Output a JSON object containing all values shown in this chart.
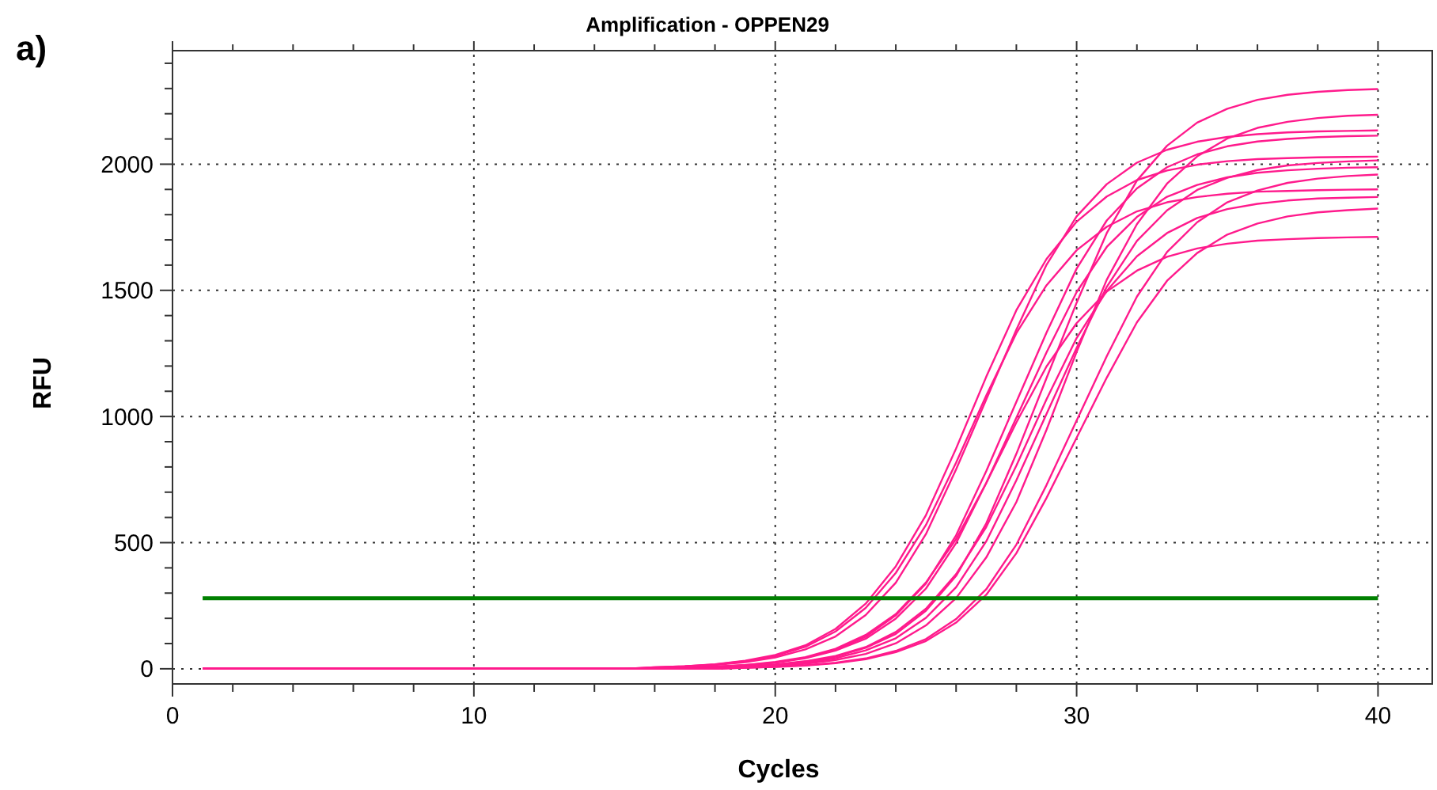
{
  "chart_data": {
    "type": "line",
    "title": "Amplification - OPPEN29",
    "xlabel": "Cycles",
    "ylabel": "RFU",
    "annotations": [
      "a)"
    ],
    "x": [
      1,
      2,
      3,
      4,
      5,
      6,
      7,
      8,
      9,
      10,
      11,
      12,
      13,
      14,
      15,
      16,
      17,
      18,
      19,
      20,
      21,
      22,
      23,
      24,
      25,
      26,
      27,
      28,
      29,
      30,
      31,
      32,
      33,
      34,
      35,
      36,
      37,
      38,
      39,
      40
    ],
    "xlim": [
      0,
      41.8
    ],
    "ylim": [
      -60,
      2450
    ],
    "xticks": [
      0,
      {
        "value": 2,
        "label": null
      },
      {
        "value": 4,
        "label": null
      },
      {
        "value": 6,
        "label": null
      },
      {
        "value": 8,
        "label": null
      },
      10,
      {
        "value": 12,
        "label": null
      },
      {
        "value": 14,
        "label": null
      },
      {
        "value": 16,
        "label": null
      },
      {
        "value": 18,
        "label": null
      },
      20,
      {
        "value": 22,
        "label": null
      },
      {
        "value": 24,
        "label": null
      },
      {
        "value": 26,
        "label": null
      },
      {
        "value": 28,
        "label": null
      },
      30,
      {
        "value": 32,
        "label": null
      },
      {
        "value": 34,
        "label": null
      },
      {
        "value": 36,
        "label": null
      },
      {
        "value": 38,
        "label": null
      },
      40
    ],
    "yticks": [
      0,
      {
        "value": 100,
        "label": null
      },
      {
        "value": 200,
        "label": null
      },
      {
        "value": 300,
        "label": null
      },
      {
        "value": 400,
        "label": null
      },
      500,
      {
        "value": 600,
        "label": null
      },
      {
        "value": 700,
        "label": null
      },
      {
        "value": 800,
        "label": null
      },
      {
        "value": 900,
        "label": null
      },
      1000,
      {
        "value": 1100,
        "label": null
      },
      {
        "value": 1200,
        "label": null
      },
      {
        "value": 1300,
        "label": null
      },
      {
        "value": 1400,
        "label": null
      },
      1500,
      {
        "value": 1600,
        "label": null
      },
      {
        "value": 1700,
        "label": null
      },
      {
        "value": 1800,
        "label": null
      },
      {
        "value": 1900,
        "label": null
      },
      2000,
      {
        "value": 2100,
        "label": null
      },
      {
        "value": 2200,
        "label": null
      },
      {
        "value": 2300,
        "label": null
      },
      {
        "value": 2400,
        "label": null
      }
    ],
    "grid": true,
    "marker": "none",
    "line_style": "solid",
    "ref_lines": [
      {
        "axis": "y",
        "value": 280,
        "color": "#008000",
        "line_style": "solid"
      }
    ],
    "series": [
      {
        "color": "#ff1a8c",
        "values": [
          0,
          0,
          0,
          0,
          0,
          0,
          0,
          0,
          0,
          0,
          0,
          0,
          0,
          0,
          0,
          6,
          10,
          18,
          32,
          55,
          93,
          158,
          258,
          406,
          609,
          873,
          1157,
          1421,
          1624,
          1772,
          1872,
          1937,
          1975,
          1998,
          2012,
          2020,
          2024,
          2027,
          2029,
          2030
        ]
      },
      {
        "color": "#ff1a8c",
        "values": [
          0,
          0,
          0,
          0,
          0,
          0,
          0,
          0,
          0,
          0,
          0,
          0,
          0,
          0,
          0,
          6,
          10,
          17,
          30,
          51,
          87,
          148,
          241,
          380,
          570,
          817,
          1083,
          1330,
          1520,
          1659,
          1752,
          1813,
          1849,
          1870,
          1883,
          1891,
          1894,
          1897,
          1899,
          1900
        ]
      },
      {
        "color": "#ff1a8c",
        "values": [
          0,
          0,
          0,
          0,
          0,
          0,
          0,
          0,
          0,
          0,
          0,
          0,
          0,
          0,
          0,
          4,
          9,
          15,
          26,
          45,
          77,
          128,
          213,
          341,
          534,
          790,
          1067,
          1344,
          1601,
          1793,
          1921,
          2006,
          2057,
          2089,
          2108,
          2119,
          2126,
          2130,
          2132,
          2134
        ]
      },
      {
        "color": "#ff1a8c",
        "values": [
          0,
          0,
          0,
          0,
          0,
          0,
          0,
          0,
          0,
          0,
          0,
          0,
          0,
          0,
          0,
          0,
          5,
          9,
          15,
          27,
          46,
          79,
          134,
          217,
          342,
          514,
          736,
          976,
          1198,
          1370,
          1495,
          1578,
          1633,
          1666,
          1685,
          1697,
          1703,
          1707,
          1710,
          1712
        ]
      },
      {
        "color": "#ff1a8c",
        "values": [
          0,
          0,
          0,
          0,
          0,
          0,
          0,
          0,
          0,
          0,
          0,
          0,
          0,
          0,
          0,
          0,
          4,
          8,
          15,
          25,
          44,
          76,
          127,
          212,
          338,
          529,
          783,
          1058,
          1332,
          1586,
          1777,
          1904,
          1988,
          2039,
          2071,
          2090,
          2100,
          2107,
          2111,
          2113
        ]
      },
      {
        "color": "#ff1a8c",
        "values": [
          0,
          0,
          0,
          0,
          0,
          0,
          0,
          0,
          0,
          0,
          0,
          0,
          0,
          0,
          0,
          0,
          4,
          8,
          14,
          24,
          42,
          72,
          119,
          199,
          318,
          498,
          736,
          995,
          1254,
          1493,
          1672,
          1791,
          1871,
          1918,
          1948,
          1966,
          1976,
          1982,
          1986,
          1988
        ]
      },
      {
        "color": "#ff1a8c",
        "values": [
          0,
          0,
          0,
          0,
          0,
          0,
          0,
          0,
          0,
          0,
          0,
          0,
          0,
          0,
          0,
          0,
          0,
          6,
          9,
          17,
          30,
          51,
          86,
          146,
          238,
          375,
          562,
          805,
          1068,
          1311,
          1498,
          1635,
          1727,
          1787,
          1822,
          1843,
          1856,
          1864,
          1867,
          1870
        ]
      },
      {
        "color": "#ff1a8c",
        "values": [
          0,
          0,
          0,
          0,
          0,
          0,
          0,
          0,
          0,
          0,
          0,
          0,
          0,
          0,
          0,
          0,
          0,
          5,
          9,
          16,
          28,
          48,
          83,
          138,
          230,
          368,
          576,
          852,
          1152,
          1451,
          1727,
          1935,
          2073,
          2165,
          2220,
          2255,
          2275,
          2287,
          2294,
          2298
        ]
      },
      {
        "color": "#ff1a8c",
        "values": [
          0,
          0,
          0,
          0,
          0,
          0,
          0,
          0,
          0,
          0,
          0,
          0,
          0,
          0,
          0,
          0,
          0,
          4,
          8,
          14,
          24,
          42,
          73,
          121,
          202,
          323,
          505,
          747,
          1010,
          1272,
          1514,
          1696,
          1817,
          1898,
          1946,
          1977,
          1995,
          2005,
          2011,
          2015
        ]
      },
      {
        "color": "#ff1a8c",
        "values": [
          0,
          0,
          0,
          0,
          0,
          0,
          0,
          0,
          0,
          0,
          0,
          0,
          0,
          0,
          0,
          0,
          0,
          0,
          7,
          11,
          20,
          35,
          59,
          101,
          172,
          280,
          441,
          661,
          947,
          1256,
          1542,
          1762,
          1923,
          2031,
          2102,
          2144,
          2168,
          2183,
          2192,
          2196
        ]
      },
      {
        "color": "#ff1a8c",
        "values": [
          0,
          0,
          0,
          0,
          0,
          0,
          0,
          0,
          0,
          0,
          0,
          0,
          0,
          0,
          0,
          0,
          0,
          0,
          4,
          8,
          14,
          24,
          41,
          71,
          118,
          197,
          315,
          492,
          728,
          984,
          1239,
          1475,
          1652,
          1770,
          1849,
          1896,
          1926,
          1943,
          1953,
          1959
        ]
      },
      {
        "color": "#ff1a8c",
        "values": [
          0,
          0,
          0,
          0,
          0,
          0,
          0,
          0,
          0,
          0,
          0,
          0,
          0,
          0,
          0,
          0,
          0,
          0,
          4,
          7,
          13,
          22,
          38,
          66,
          110,
          183,
          293,
          458,
          677,
          916,
          1154,
          1373,
          1538,
          1648,
          1721,
          1765,
          1793,
          1809,
          1818,
          1824
        ]
      }
    ]
  }
}
